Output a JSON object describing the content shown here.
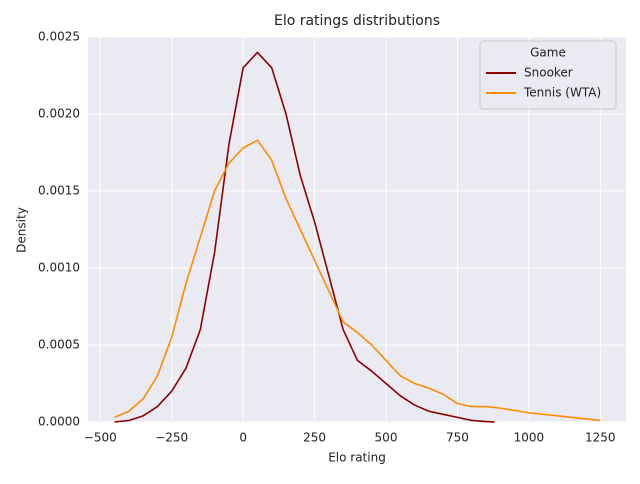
{
  "chart_data": {
    "type": "line",
    "title": "Elo ratings distributions",
    "x_label": "Elo rating",
    "y_label": "Density",
    "xlim": [
      -543,
      1340
    ],
    "ylim": [
      0,
      0.0025
    ],
    "xticks": [
      {
        "value": -500,
        "label": "−500"
      },
      {
        "value": -250,
        "label": "−250"
      },
      0,
      250,
      500,
      750,
      1000,
      1250
    ],
    "yticks": [
      {
        "value": 0,
        "label": "0.0000"
      },
      {
        "value": 0.0005,
        "label": "0.0005"
      },
      {
        "value": 0.001,
        "label": "0.0010"
      },
      {
        "value": 0.0015,
        "label": "0.0015"
      },
      {
        "value": 0.002,
        "label": "0.0020"
      },
      {
        "value": 0.0025,
        "label": "0.0025"
      }
    ],
    "grid": true,
    "legend_title": "Game",
    "legend_position": "upper right",
    "series": [
      {
        "name": "Snooker",
        "color": "#8b0000",
        "x": [
          -450,
          -400,
          -350,
          -300,
          -250,
          -200,
          -150,
          -100,
          -50,
          0,
          50,
          100,
          150,
          200,
          250,
          300,
          350,
          400,
          450,
          500,
          550,
          600,
          650,
          700,
          750,
          800,
          850,
          880
        ],
        "values": [
          0,
          1e-05,
          4e-05,
          0.0001,
          0.0002,
          0.00035,
          0.0006,
          0.0011,
          0.0018,
          0.0023,
          0.0024,
          0.0023,
          0.002,
          0.0016,
          0.0013,
          0.00095,
          0.0006,
          0.0004,
          0.00033,
          0.00025,
          0.00017,
          0.00011,
          7e-05,
          5e-05,
          3e-05,
          1e-05,
          3e-06,
          0
        ]
      },
      {
        "name": "Tennis (WTA)",
        "color": "#ff8c00",
        "x": [
          -450,
          -400,
          -350,
          -300,
          -250,
          -200,
          -150,
          -100,
          -50,
          0,
          50,
          100,
          150,
          200,
          250,
          300,
          350,
          400,
          450,
          500,
          550,
          600,
          650,
          700,
          750,
          800,
          850,
          900,
          1000,
          1100,
          1250
        ],
        "values": [
          3e-05,
          7e-05,
          0.00015,
          0.0003,
          0.00055,
          0.0009,
          0.0012,
          0.0015,
          0.00168,
          0.00178,
          0.00183,
          0.0017,
          0.00145,
          0.00125,
          0.00105,
          0.00085,
          0.00065,
          0.00058,
          0.0005,
          0.0004,
          0.0003,
          0.00025,
          0.00022,
          0.00018,
          0.00012,
          0.0001,
          0.0001,
          9e-05,
          6e-05,
          4e-05,
          1e-05
        ]
      }
    ]
  }
}
